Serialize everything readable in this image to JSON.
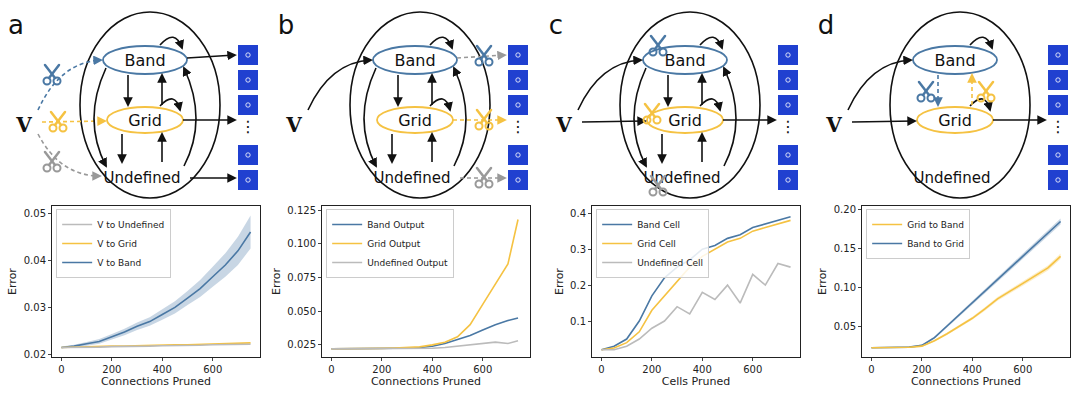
{
  "diagrams": [
    {
      "label": "a",
      "input": "V",
      "nodes": [
        "Band",
        "Grid",
        "Undefined"
      ],
      "ellipsis": "⋮"
    },
    {
      "label": "b",
      "input": "V",
      "nodes": [
        "Band",
        "Grid",
        "Undefined"
      ],
      "ellipsis": "⋮"
    },
    {
      "label": "c",
      "input": "V",
      "nodes": [
        "Band",
        "Grid",
        "Undefined"
      ],
      "ellipsis": "⋮"
    },
    {
      "label": "d",
      "input": "V",
      "nodes": [
        "Band",
        "Grid",
        "Undefined"
      ],
      "ellipsis": "⋮"
    }
  ],
  "chart_data": [
    {
      "type": "line",
      "xlabel": "Connections Pruned",
      "ylabel": "Error",
      "legend": "upper left",
      "grid": false,
      "xlim": [
        -37.5,
        787.5
      ],
      "xticks": [
        0,
        200,
        400,
        600
      ],
      "ylim": [
        0.0195,
        0.0515
      ],
      "yticks": [
        0.02,
        0.03,
        0.04,
        0.05
      ],
      "x": [
        0,
        50,
        100,
        150,
        200,
        250,
        300,
        350,
        400,
        450,
        500,
        550,
        600,
        650,
        700,
        750
      ],
      "series": [
        {
          "name": "V to Band",
          "color": "#4a78a4",
          "values": [
            0.0215,
            0.0218,
            0.0223,
            0.0228,
            0.0238,
            0.0248,
            0.026,
            0.027,
            0.0285,
            0.03,
            0.032,
            0.034,
            0.0365,
            0.039,
            0.042,
            0.046
          ],
          "error": [
            0.0002,
            0.0003,
            0.0004,
            0.0005,
            0.0006,
            0.0007,
            0.0008,
            0.0009,
            0.0011,
            0.0013,
            0.0015,
            0.0018,
            0.0021,
            0.0025,
            0.003,
            0.0035
          ]
        },
        {
          "name": "V to Grid",
          "color": "#f5c242",
          "values": [
            0.0215,
            0.0216,
            0.0216,
            0.0217,
            0.0218,
            0.0218,
            0.0219,
            0.0219,
            0.022,
            0.0221,
            0.0221,
            0.0222,
            0.0223,
            0.0223,
            0.0224,
            0.0225
          ]
        },
        {
          "name": "V to Undefined",
          "color": "#bbbbbb",
          "values": [
            0.0215,
            0.0215,
            0.0216,
            0.0216,
            0.0217,
            0.0217,
            0.0218,
            0.0218,
            0.0219,
            0.0219,
            0.022,
            0.022,
            0.0221,
            0.0221,
            0.0222,
            0.0222
          ]
        }
      ]
    },
    {
      "type": "line",
      "xlabel": "Connections Pruned",
      "ylabel": "Error",
      "legend": "upper left",
      "grid": false,
      "xlim": [
        -37.5,
        787.5
      ],
      "xticks": [
        0,
        200,
        400,
        600
      ],
      "ylim": [
        0.016,
        0.128
      ],
      "yticks": [
        0.025,
        {
          "value": 0.05,
          "label": "0.050"
        },
        0.075,
        {
          "value": 0.1,
          "label": "0.100"
        },
        0.125
      ],
      "x": [
        0,
        50,
        100,
        150,
        200,
        250,
        300,
        350,
        400,
        450,
        500,
        550,
        600,
        650,
        700,
        740
      ],
      "series": [
        {
          "name": "Band Output",
          "color": "#4a78a4",
          "values": [
            0.022,
            0.022,
            0.022,
            0.0222,
            0.0223,
            0.0225,
            0.0227,
            0.023,
            0.024,
            0.026,
            0.029,
            0.032,
            0.036,
            0.04,
            0.043,
            0.045
          ]
        },
        {
          "name": "Grid Output",
          "color": "#f5c242",
          "values": [
            0.022,
            0.022,
            0.022,
            0.0222,
            0.0224,
            0.0227,
            0.023,
            0.0235,
            0.025,
            0.027,
            0.031,
            0.04,
            0.055,
            0.07,
            0.085,
            0.118
          ]
        },
        {
          "name": "Undefined Output",
          "color": "#bbbbbb",
          "values": [
            0.022,
            0.022,
            0.022,
            0.022,
            0.0222,
            0.0222,
            0.0223,
            0.0224,
            0.0225,
            0.023,
            0.024,
            0.025,
            0.026,
            0.027,
            0.026,
            0.028
          ]
        }
      ]
    },
    {
      "type": "line",
      "xlabel": "Cells Pruned",
      "ylabel": "Error",
      "legend": "upper left",
      "grid": false,
      "xlim": [
        -37.5,
        787.5
      ],
      "xticks": [
        0,
        200,
        400,
        600
      ],
      "ylim": [
        0,
        0.42
      ],
      "yticks": [
        0.1,
        0.2,
        0.3,
        0.4
      ],
      "x": [
        0,
        50,
        100,
        150,
        200,
        250,
        300,
        350,
        400,
        450,
        500,
        550,
        600,
        650,
        700,
        750
      ],
      "series": [
        {
          "name": "Band Cell",
          "color": "#4a78a4",
          "values": [
            0.02,
            0.03,
            0.05,
            0.1,
            0.17,
            0.22,
            0.25,
            0.27,
            0.3,
            0.31,
            0.33,
            0.34,
            0.36,
            0.37,
            0.38,
            0.39
          ]
        },
        {
          "name": "Grid Cell",
          "color": "#f5c242",
          "values": [
            0.02,
            0.025,
            0.04,
            0.07,
            0.13,
            0.17,
            0.21,
            0.25,
            0.28,
            0.3,
            0.32,
            0.33,
            0.35,
            0.36,
            0.37,
            0.38
          ]
        },
        {
          "name": "Undefined Cell",
          "color": "#bbbbbb",
          "values": [
            0.02,
            0.02,
            0.03,
            0.05,
            0.08,
            0.1,
            0.14,
            0.12,
            0.18,
            0.16,
            0.2,
            0.15,
            0.23,
            0.2,
            0.26,
            0.25
          ]
        }
      ]
    },
    {
      "type": "line",
      "xlabel": "Connections Pruned",
      "ylabel": "Error",
      "legend": "upper left",
      "grid": false,
      "xlim": [
        -37.5,
        787.5
      ],
      "xticks": [
        0,
        200,
        400,
        600
      ],
      "ylim": [
        0.01,
        0.205
      ],
      "yticks": [
        0.05,
        {
          "value": 0.1,
          "label": "0.10"
        },
        0.15,
        {
          "value": 0.2,
          "label": "0.20"
        }
      ],
      "x": [
        0,
        50,
        100,
        150,
        200,
        250,
        300,
        350,
        400,
        450,
        500,
        550,
        600,
        650,
        700,
        750
      ],
      "series": [
        {
          "name": "Band to Grid",
          "color": "#4a78a4",
          "values": [
            0.022,
            0.022,
            0.0222,
            0.0228,
            0.025,
            0.035,
            0.05,
            0.065,
            0.08,
            0.095,
            0.11,
            0.125,
            0.14,
            0.155,
            0.17,
            0.185
          ],
          "error": [
            0.0005,
            0.0005,
            0.0006,
            0.0008,
            0.001,
            0.0015,
            0.002,
            0.0022,
            0.0025,
            0.0027,
            0.003,
            0.0032,
            0.0034,
            0.0036,
            0.0038,
            0.004
          ]
        },
        {
          "name": "Grid to Band",
          "color": "#f5c242",
          "values": [
            0.022,
            0.022,
            0.0221,
            0.0225,
            0.024,
            0.031,
            0.04,
            0.05,
            0.06,
            0.072,
            0.085,
            0.095,
            0.105,
            0.115,
            0.125,
            0.14
          ],
          "error": [
            0.0005,
            0.0005,
            0.0006,
            0.0008,
            0.001,
            0.0013,
            0.0016,
            0.0018,
            0.002,
            0.0022,
            0.0024,
            0.0026,
            0.0028,
            0.003,
            0.0032,
            0.0035
          ]
        }
      ]
    }
  ]
}
